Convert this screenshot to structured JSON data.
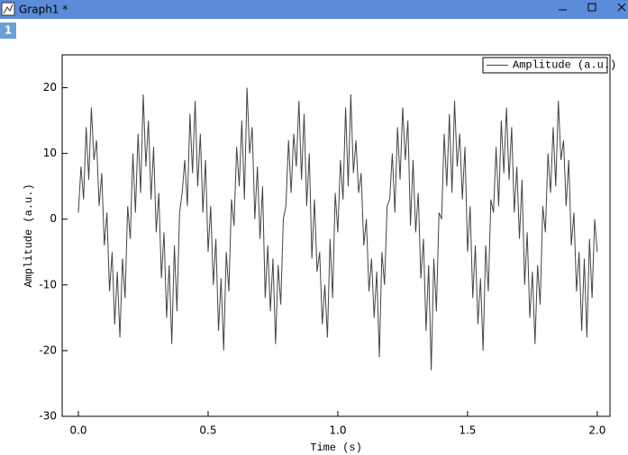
{
  "window": {
    "title": "Graph1 *",
    "tab": "1"
  },
  "chart_data": {
    "type": "line",
    "x_label": "Time (s)",
    "y_label": "Amplitude (a.u.)",
    "xlim": [
      -0.0625,
      2.049
    ],
    "ylim": [
      -30,
      25
    ],
    "xticks": [
      {
        "value": 0,
        "label": "0.0"
      },
      0.5,
      {
        "value": 1,
        "label": "1.0"
      },
      1.5,
      {
        "value": 2,
        "label": "2.0"
      }
    ],
    "yticks": [
      -30,
      -20,
      -10,
      0,
      10,
      20
    ],
    "legend": "top-right",
    "x": [
      0,
      0.01,
      0.02,
      0.03,
      0.04,
      0.05,
      0.06,
      0.07,
      0.08,
      0.09,
      0.1,
      0.11,
      0.12,
      0.13,
      0.14,
      0.15,
      0.16,
      0.17,
      0.18,
      0.19,
      0.2,
      0.21,
      0.22,
      0.23,
      0.24,
      0.25,
      0.26,
      0.27,
      0.28,
      0.29,
      0.3,
      0.31,
      0.32,
      0.33,
      0.34,
      0.35,
      0.36,
      0.37,
      0.38,
      0.39,
      0.4,
      0.41,
      0.42,
      0.43,
      0.44,
      0.45,
      0.46,
      0.47,
      0.48,
      0.49,
      0.5,
      0.51,
      0.52,
      0.53,
      0.54,
      0.55,
      0.56,
      0.57,
      0.58,
      0.59,
      0.6,
      0.61,
      0.62,
      0.63,
      0.64,
      0.65,
      0.66,
      0.67,
      0.68,
      0.69,
      0.7,
      0.71,
      0.72,
      0.73,
      0.74,
      0.75,
      0.76,
      0.77,
      0.78,
      0.79,
      0.8,
      0.81,
      0.82,
      0.83,
      0.84,
      0.85,
      0.86,
      0.87,
      0.88,
      0.89,
      0.9,
      0.91,
      0.92,
      0.93,
      0.94,
      0.95,
      0.96,
      0.97,
      0.98,
      0.99,
      1,
      1.01,
      1.02,
      1.03,
      1.04,
      1.05,
      1.06,
      1.07,
      1.08,
      1.09,
      1.1,
      1.11,
      1.12,
      1.13,
      1.14,
      1.15,
      1.16,
      1.17,
      1.18,
      1.19,
      1.2,
      1.21,
      1.22,
      1.23,
      1.24,
      1.25,
      1.26,
      1.27,
      1.28,
      1.29,
      1.3,
      1.31,
      1.32,
      1.33,
      1.34,
      1.35,
      1.36,
      1.37,
      1.38,
      1.39,
      1.4,
      1.41,
      1.42,
      1.43,
      1.44,
      1.45,
      1.46,
      1.47,
      1.48,
      1.49,
      1.5,
      1.51,
      1.52,
      1.53,
      1.54,
      1.55,
      1.56,
      1.57,
      1.58,
      1.59,
      1.6,
      1.61,
      1.62,
      1.63,
      1.64,
      1.65,
      1.66,
      1.67,
      1.68,
      1.69,
      1.7,
      1.71,
      1.72,
      1.73,
      1.74,
      1.75,
      1.76,
      1.77,
      1.78,
      1.79,
      1.8,
      1.81,
      1.82,
      1.83,
      1.84,
      1.85,
      1.86,
      1.87,
      1.88,
      1.89,
      1.9,
      1.91,
      1.92,
      1.93,
      1.94,
      1.95,
      1.96,
      1.97,
      1.98,
      1.99,
      2
    ],
    "series": [
      {
        "name": "Amplitude (a.u.)",
        "color": "#444444",
        "values": [
          1,
          8,
          3,
          14,
          6,
          17,
          9,
          12,
          2,
          7,
          -4,
          1,
          -11,
          -5,
          -16,
          -8,
          -18,
          -6,
          -12,
          2,
          -3,
          10,
          1,
          13,
          4,
          19,
          8,
          15,
          3,
          11,
          -2,
          4,
          -9,
          -2,
          -15,
          -7,
          -19,
          -4,
          -14,
          1,
          4,
          9,
          2,
          16,
          7,
          18,
          5,
          13,
          1,
          9,
          -5,
          2,
          -10,
          -3,
          -17,
          -9,
          -20,
          -5,
          -11,
          3,
          -1,
          11,
          5,
          15,
          3,
          20,
          10,
          14,
          0,
          8,
          -3,
          5,
          -12,
          -4,
          -14,
          -6,
          -19,
          -7,
          -13,
          0,
          2,
          12,
          4,
          13,
          8,
          18,
          6,
          16,
          2,
          10,
          -6,
          3,
          -8,
          -5,
          -16,
          -10,
          -18,
          -3,
          -12,
          4,
          -2,
          9,
          3,
          17,
          5,
          19,
          7,
          12,
          4,
          7,
          -4,
          0,
          -11,
          -6,
          -15,
          -8,
          -21,
          -5,
          -10,
          2,
          3,
          10,
          1,
          14,
          6,
          17,
          9,
          15,
          -1,
          9,
          -2,
          4,
          -9,
          -3,
          -17,
          -7,
          -23,
          -6,
          -14,
          1,
          0,
          13,
          5,
          16,
          4,
          18,
          8,
          13,
          3,
          11,
          -5,
          2,
          -12,
          -4,
          -16,
          -9,
          -20,
          -4,
          -11,
          3,
          1,
          11,
          2,
          15,
          7,
          17,
          6,
          14,
          1,
          8,
          -3,
          6,
          -10,
          -2,
          -15,
          -8,
          -19,
          -7,
          -13,
          2,
          -2,
          10,
          4,
          14,
          5,
          18,
          9,
          12,
          2,
          9,
          -4,
          1,
          -11,
          -5,
          -17,
          -6,
          -18,
          -3,
          -12,
          0,
          -5
        ]
      }
    ]
  }
}
